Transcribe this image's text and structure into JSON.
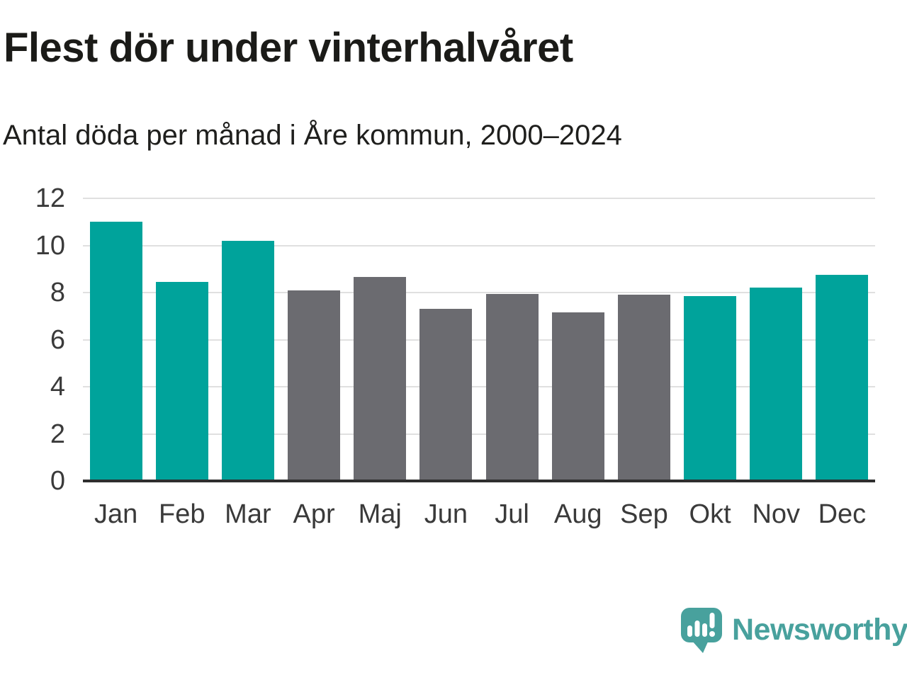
{
  "header": {
    "title": "Flest dör under vinterhalvåret",
    "subtitle": "Antal döda per månad i Åre kommun, 2000–2024"
  },
  "chart_data": {
    "type": "bar",
    "title": "Flest dör under vinterhalvåret",
    "subtitle": "Antal döda per månad i Åre kommun, 2000–2024",
    "categories": [
      "Jan",
      "Feb",
      "Mar",
      "Apr",
      "Maj",
      "Jun",
      "Jul",
      "Aug",
      "Sep",
      "Okt",
      "Nov",
      "Dec"
    ],
    "values": [
      11.0,
      8.45,
      10.2,
      8.1,
      8.65,
      7.3,
      7.95,
      7.15,
      7.9,
      7.85,
      8.2,
      8.75
    ],
    "bar_groups": [
      "winter",
      "winter",
      "winter",
      "summer",
      "summer",
      "summer",
      "summer",
      "summer",
      "summer",
      "winter",
      "winter",
      "winter"
    ],
    "group_colors": {
      "winter": "#00A39B",
      "summer": "#6B6B70"
    },
    "xlabel": "",
    "ylabel": "",
    "ylim": [
      0,
      12
    ],
    "yticks": [
      0,
      2,
      4,
      6,
      8,
      10,
      12
    ],
    "grid": true,
    "legend": "none",
    "gridline_color": "#E0E0E0",
    "axis_color": "#2E2E2E",
    "tick_label_color": "#3A3A3A"
  },
  "footer": {
    "brand": "Newsworthy",
    "brand_color": "#48A19D",
    "logo_icon": "speech-bubble-bar-chart-icon"
  }
}
